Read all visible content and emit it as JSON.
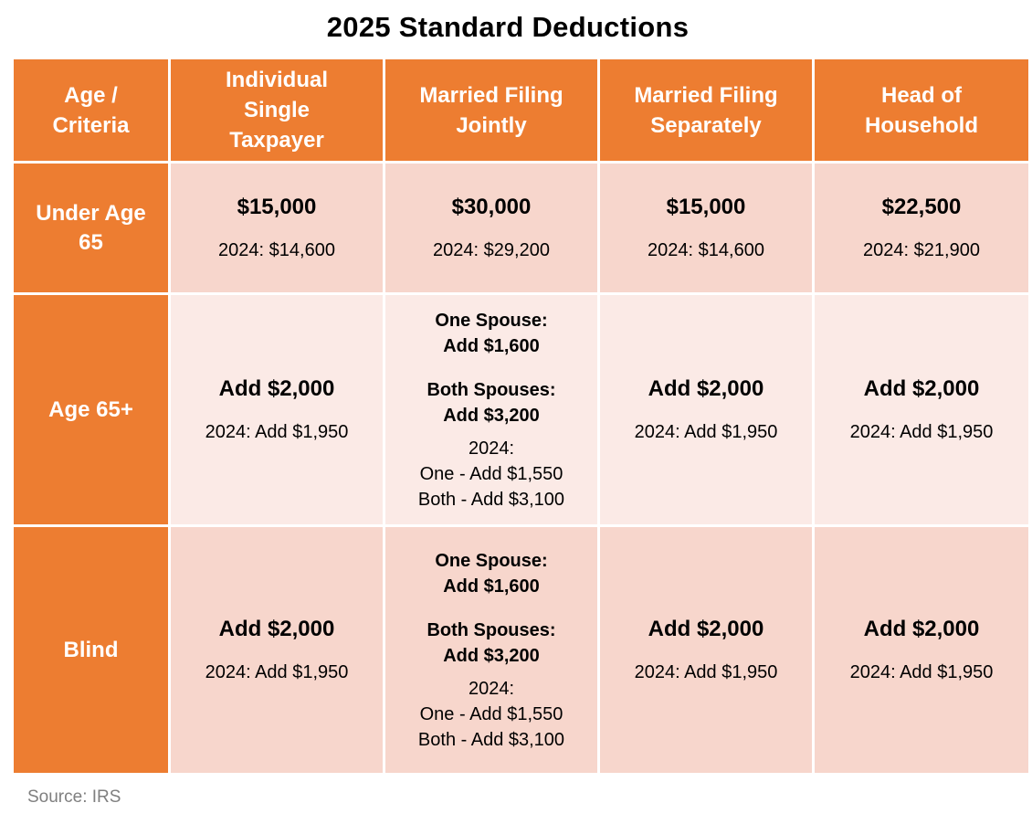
{
  "title": "2025 Standard Deductions",
  "header": {
    "criteria": [
      "Age /",
      "Criteria"
    ],
    "single": [
      "Individual",
      "Single",
      "Taxpayer"
    ],
    "joint": [
      "Married Filing",
      "Jointly"
    ],
    "separate": [
      "Married Filing",
      "Separately"
    ],
    "hoh": [
      "Head of",
      "Household"
    ]
  },
  "rows": {
    "under65": {
      "label": [
        "Under Age",
        "65"
      ],
      "single": {
        "main": "$15,000",
        "prev": "2024: $14,600"
      },
      "joint": {
        "main": "$30,000",
        "prev": "2024: $29,200"
      },
      "separate": {
        "main": "$15,000",
        "prev": "2024: $14,600"
      },
      "hoh": {
        "main": "$22,500",
        "prev": "2024: $21,900"
      }
    },
    "age65": {
      "label": "Age 65+",
      "single": {
        "main": "Add $2,000",
        "prev": "2024: Add $1,950"
      },
      "joint": {
        "one_label": "One Spouse:",
        "one_value": "Add $1,600",
        "both_label": "Both Spouses:",
        "both_value": "Add $3,200",
        "prev_label": "2024:",
        "prev_one": "One - Add $1,550",
        "prev_both": "Both - Add $3,100"
      },
      "separate": {
        "main": "Add $2,000",
        "prev": "2024: Add $1,950"
      },
      "hoh": {
        "main": "Add $2,000",
        "prev": "2024: Add $1,950"
      }
    },
    "blind": {
      "label": "Blind",
      "single": {
        "main": "Add $2,000",
        "prev": "2024: Add $1,950"
      },
      "joint": {
        "one_label": "One Spouse:",
        "one_value": "Add $1,600",
        "both_label": "Both Spouses:",
        "both_value": "Add $3,200",
        "prev_label": "2024:",
        "prev_one": "One - Add $1,550",
        "prev_both": "Both - Add $3,100"
      },
      "separate": {
        "main": "Add $2,000",
        "prev": "2024: Add $1,950"
      },
      "hoh": {
        "main": "Add $2,000",
        "prev": "2024: Add $1,950"
      }
    }
  },
  "source": "Source: IRS",
  "colors": {
    "header_orange": "#ed7d31",
    "cell_dark": "#f7d6cc",
    "cell_light": "#fbeae6",
    "source_gray": "#7f7f7f"
  }
}
